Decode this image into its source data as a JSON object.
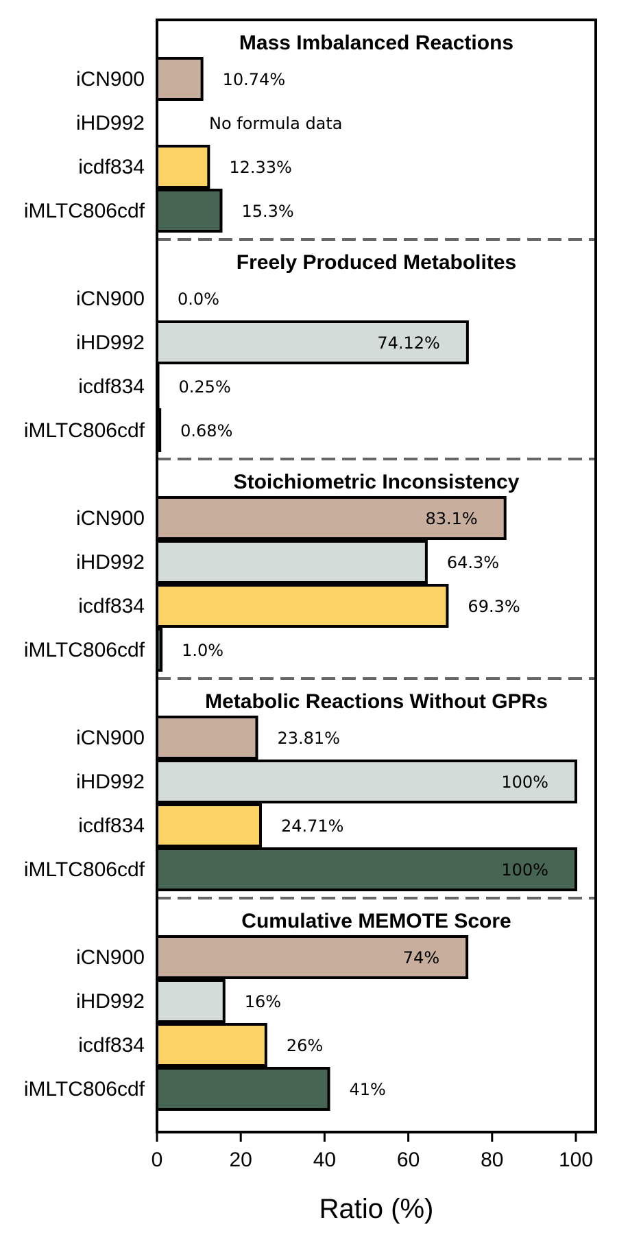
{
  "chart_data": {
    "type": "bar",
    "orientation": "horizontal",
    "xlabel": "Ratio (%)",
    "xlim": [
      0,
      105
    ],
    "xticks": [
      0,
      20,
      40,
      60,
      80,
      100
    ],
    "categories": [
      "iCN900",
      "iHD992",
      "icdf834",
      "iMLTC806cdf"
    ],
    "colors": {
      "iCN900": "#c8ae9c",
      "iHD992": "#d4dcda",
      "icdf834": "#fdd264",
      "iMLTC806cdf": "#476553"
    },
    "panels": [
      {
        "title": "Mass Imbalanced Reactions",
        "values": [
          10.74,
          null,
          12.33,
          15.3
        ],
        "labels": [
          "10.74%",
          "No formula data",
          "12.33%",
          "15.3%"
        ]
      },
      {
        "title": "Freely Produced Metabolites",
        "values": [
          0.0,
          74.12,
          0.25,
          0.68
        ],
        "labels": [
          "0.0%",
          "74.12%",
          "0.25%",
          "0.68%"
        ]
      },
      {
        "title": "Stoichiometric Inconsistency",
        "values": [
          83.1,
          64.3,
          69.3,
          1.0
        ],
        "labels": [
          "83.1%",
          "64.3%",
          "69.3%",
          "1.0%"
        ]
      },
      {
        "title": "Metabolic Reactions Without GPRs",
        "values": [
          23.81,
          100,
          24.71,
          100
        ],
        "labels": [
          "23.81%",
          "100%",
          "24.71%",
          "100%"
        ]
      },
      {
        "title": "Cumulative MEMOTE Score",
        "values": [
          74,
          16,
          26,
          41
        ],
        "labels": [
          "74%",
          "16%",
          "26%",
          "41%"
        ]
      }
    ]
  }
}
